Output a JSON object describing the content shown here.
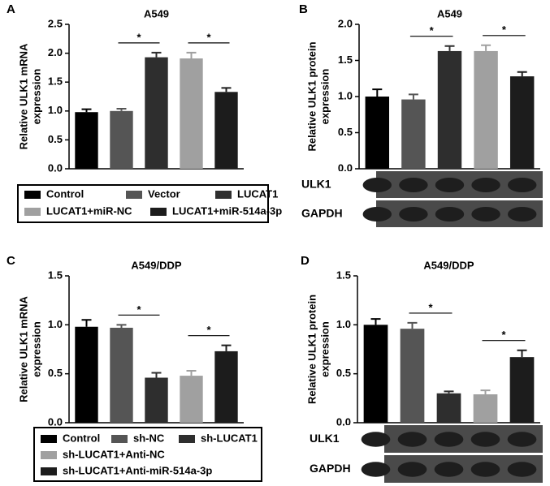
{
  "chart_data": [
    {
      "type": "bar",
      "panel": "A",
      "title": "A549",
      "ylabel": [
        "Relative ULK1 mRNA",
        "expression"
      ],
      "ylim": [
        0,
        2.5
      ],
      "yticks": [
        {
          "value": 0,
          "label": "0.0"
        },
        0.5,
        {
          "value": 1,
          "label": "1.0"
        },
        1.5,
        {
          "value": 2,
          "label": "2.0"
        },
        2.5
      ],
      "series": [
        {
          "name": "Control",
          "color": "#000000",
          "values": [
            0.98
          ],
          "errors": [
            0.05
          ]
        },
        {
          "name": "Vector",
          "color": "#555555",
          "values": [
            1.0
          ],
          "errors": [
            0.04
          ]
        },
        {
          "name": "LUCAT1",
          "color": "#2e2e2e",
          "values": [
            1.93
          ],
          "errors": [
            0.08
          ]
        },
        {
          "name": "LUCAT1+miR-NC",
          "color": "#a0a0a0",
          "values": [
            1.91
          ],
          "errors": [
            0.1
          ]
        },
        {
          "name": "LUCAT1+miR-514a-3p",
          "color": "#1c1c1c",
          "values": [
            1.33
          ],
          "errors": [
            0.07
          ]
        }
      ],
      "annotations": [
        {
          "text": "*",
          "from": 1,
          "to": 2
        },
        {
          "text": "*",
          "from": 3,
          "to": 4
        }
      ]
    },
    {
      "type": "bar",
      "panel": "B",
      "title": "A549",
      "ylabel": [
        "Relative ULK1 protein",
        "expression"
      ],
      "ylim": [
        0,
        2
      ],
      "yticks": [
        {
          "value": 0,
          "label": "0.0"
        },
        0.5,
        {
          "value": 1,
          "label": "1.0"
        },
        1.5,
        {
          "value": 2,
          "label": "2.0"
        }
      ],
      "series": [
        {
          "color": "#000000",
          "values": [
            1.0
          ],
          "errors": [
            0.1
          ]
        },
        {
          "color": "#555555",
          "values": [
            0.96
          ],
          "errors": [
            0.07
          ]
        },
        {
          "color": "#2e2e2e",
          "values": [
            1.63
          ],
          "errors": [
            0.07
          ]
        },
        {
          "color": "#a0a0a0",
          "values": [
            1.63
          ],
          "errors": [
            0.08
          ]
        },
        {
          "color": "#1c1c1c",
          "values": [
            1.28
          ],
          "errors": [
            0.06
          ]
        }
      ],
      "annotations": [
        {
          "text": "*",
          "from": 1,
          "to": 2
        },
        {
          "text": "*",
          "from": 3,
          "to": 4
        }
      ],
      "blot": [
        "ULK1",
        "GAPDH"
      ]
    },
    {
      "type": "bar",
      "panel": "C",
      "title": "A549/DDP",
      "ylabel": [
        "Relative ULK1 mRNA",
        "expression"
      ],
      "ylim": [
        0,
        1.5
      ],
      "yticks": [
        {
          "value": 0,
          "label": "0.0"
        },
        0.5,
        {
          "value": 1,
          "label": "1.0"
        },
        1.5
      ],
      "series": [
        {
          "name": "Control",
          "color": "#000000",
          "values": [
            0.98
          ],
          "errors": [
            0.07
          ]
        },
        {
          "name": "sh-NC",
          "color": "#555555",
          "values": [
            0.97
          ],
          "errors": [
            0.03
          ]
        },
        {
          "name": "sh-LUCAT1",
          "color": "#2e2e2e",
          "values": [
            0.46
          ],
          "errors": [
            0.05
          ]
        },
        {
          "name": "sh-LUCAT1+Anti-NC",
          "color": "#a0a0a0",
          "values": [
            0.48
          ],
          "errors": [
            0.05
          ]
        },
        {
          "name": "sh-LUCAT1+Anti-miR-514a-3p",
          "color": "#1c1c1c",
          "values": [
            0.73
          ],
          "errors": [
            0.06
          ]
        }
      ],
      "annotations": [
        {
          "text": "*",
          "from": 1,
          "to": 2
        },
        {
          "text": "*",
          "from": 3,
          "to": 4
        }
      ]
    },
    {
      "type": "bar",
      "panel": "D",
      "title": "A549/DDP",
      "ylabel": [
        "Relative ULK1 protein",
        "expression"
      ],
      "ylim": [
        0,
        1.5
      ],
      "yticks": [
        {
          "value": 0,
          "label": "0.0"
        },
        0.5,
        {
          "value": 1,
          "label": "1.0"
        },
        1.5
      ],
      "series": [
        {
          "color": "#000000",
          "values": [
            1.0
          ],
          "errors": [
            0.06
          ]
        },
        {
          "color": "#555555",
          "values": [
            0.96
          ],
          "errors": [
            0.06
          ]
        },
        {
          "color": "#2e2e2e",
          "values": [
            0.3
          ],
          "errors": [
            0.02
          ]
        },
        {
          "color": "#a0a0a0",
          "values": [
            0.29
          ],
          "errors": [
            0.04
          ]
        },
        {
          "color": "#1c1c1c",
          "values": [
            0.67
          ],
          "errors": [
            0.07
          ]
        }
      ],
      "annotations": [
        {
          "text": "*",
          "from": 1,
          "to": 2
        },
        {
          "text": "*",
          "from": 3,
          "to": 4
        }
      ],
      "blot": [
        "ULK1",
        "GAPDH"
      ]
    }
  ]
}
